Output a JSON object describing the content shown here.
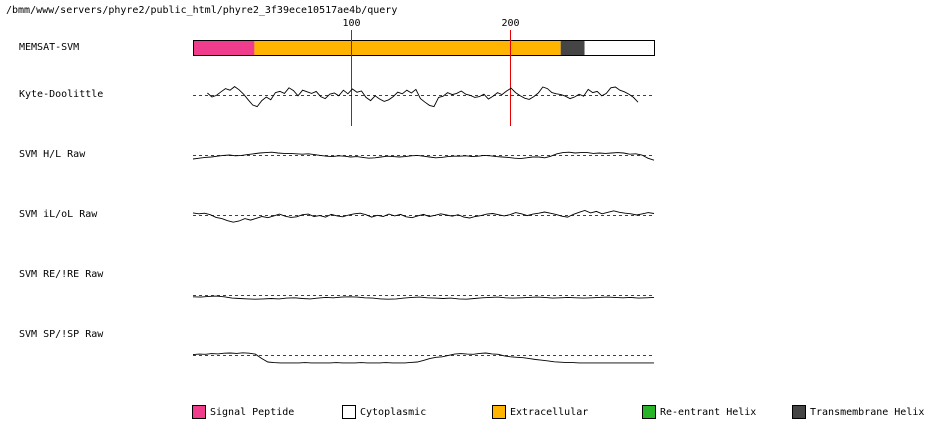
{
  "path_title": "/bmm/www/servers/phyre2/public_html/phyre2_3f39ece10517ae4b/query",
  "chart_data": {
    "type": "line",
    "residue_range": [
      1,
      290
    ],
    "tick_labels": [
      "100",
      "200"
    ],
    "tick_positions": [
      100,
      200
    ],
    "memsat": {
      "label": "MEMSAT-SVM",
      "segments": [
        {
          "type": "signal",
          "start": 1,
          "end": 39
        },
        {
          "type": "extra",
          "start": 40,
          "end": 231
        },
        {
          "type": "tm",
          "start": 232,
          "end": 246
        },
        {
          "type": "cyto",
          "start": 247,
          "end": 290
        }
      ]
    },
    "tracks": [
      {
        "name": "Kyte-Doolittle",
        "residues": [
          10,
          280
        ],
        "baseline": 0,
        "values": [
          0.5,
          -0.5,
          -0.1,
          0.8,
          1.6,
          1.2,
          2.1,
          1.3,
          0.2,
          -1.2,
          -2.5,
          -2.9,
          -1.4,
          -0.5,
          -1.2,
          0.6,
          0.9,
          0.4,
          1.8,
          1.1,
          -0.2,
          1.2,
          0.8,
          0.4,
          0.9,
          -0.4,
          -0.9,
          0.2,
          0.5,
          -0.2,
          1.2,
          0.3,
          1.5,
          0.7,
          1.0,
          -0.6,
          -1.4,
          -0.2,
          -1.0,
          -1.6,
          -1.2,
          -0.4,
          0.7,
          0.3,
          1.2,
          0.5,
          1.4,
          -0.9,
          -1.8,
          -2.6,
          -2.9,
          -0.6,
          -0.3,
          0.6,
          0.1,
          0.4,
          1.0,
          0.2,
          -0.1,
          -0.6,
          -0.4,
          0.2,
          -1.0,
          -0.3,
          0.6,
          0.1,
          1.0,
          1.7,
          0.6,
          -0.2,
          -0.8,
          -1.1,
          -0.4,
          0.5,
          2.0,
          1.6,
          0.6,
          0.3,
          0.1,
          -0.3,
          -0.9,
          -0.5,
          0.2,
          -0.3,
          1.4,
          0.6,
          0.9,
          -0.2,
          0.4,
          1.8,
          2.0,
          1.2,
          0.8,
          0.2,
          -0.6,
          -1.8
        ]
      },
      {
        "name": "SVM H/L Raw",
        "residues": [
          1,
          290
        ],
        "baseline": 0,
        "values": [
          -1.0,
          -0.8,
          -0.6,
          -0.5,
          -0.3,
          -0.1,
          0.0,
          -0.2,
          -0.1,
          0.1,
          0.3,
          0.5,
          0.6,
          0.7,
          0.5,
          0.4,
          0.4,
          0.3,
          0.2,
          0.3,
          0.1,
          -0.1,
          -0.3,
          -0.4,
          -0.2,
          -0.3,
          -0.5,
          -0.4,
          -0.6,
          -0.8,
          -0.7,
          -0.5,
          -0.3,
          -0.4,
          -0.5,
          -0.4,
          -0.2,
          -0.1,
          -0.3,
          -0.5,
          -0.7,
          -0.6,
          -0.4,
          -0.3,
          -0.3,
          -0.2,
          -0.4,
          -0.3,
          -0.1,
          -0.2,
          -0.4,
          -0.5,
          -0.6,
          -0.8,
          -0.9,
          -0.7,
          -0.5,
          -0.5,
          -0.7,
          -0.3,
          0.3,
          0.6,
          0.7,
          0.5,
          0.6,
          0.6,
          0.4,
          0.5,
          0.4,
          0.5,
          0.6,
          0.5,
          0.2,
          0.3,
          0.0,
          -0.8,
          -1.3
        ]
      },
      {
        "name": "SVM iL/oL Raw",
        "residues": [
          1,
          290
        ],
        "baseline": 0,
        "values": [
          0.7,
          0.4,
          0.6,
          0.1,
          -0.8,
          -1.2,
          -1.9,
          -2.4,
          -2.0,
          -1.2,
          -1.7,
          -1.1,
          -0.5,
          -0.9,
          -0.3,
          0.3,
          -0.4,
          -0.8,
          -0.6,
          0.1,
          0.3,
          -0.5,
          -0.2,
          -0.7,
          0.2,
          -0.3,
          -0.6,
          0.0,
          0.4,
          0.6,
          0.1,
          -0.7,
          -0.1,
          -0.5,
          0.3,
          -0.3,
          0.2,
          -0.6,
          -0.9,
          -0.3,
          0.2,
          -0.5,
          -0.1,
          0.4,
          0.0,
          -0.4,
          0.1,
          -0.7,
          -1.0,
          -0.5,
          -0.2,
          0.3,
          0.5,
          0.1,
          -0.3,
          0.1,
          0.8,
          0.4,
          -0.2,
          0.3,
          0.6,
          1.0,
          0.6,
          0.2,
          -0.4,
          -0.7,
          0.2,
          0.9,
          1.5,
          0.7,
          1.2,
          0.4,
          0.9,
          1.4,
          0.9,
          0.6,
          0.4,
          0.0,
          0.4,
          0.8,
          0.5
        ]
      },
      {
        "name": "SVM RE/!RE Raw",
        "residues": [
          1,
          290
        ],
        "baseline": 0,
        "values": [
          -0.5,
          -0.6,
          -0.4,
          -0.3,
          -0.5,
          -0.9,
          -1.0,
          -1.1,
          -1.2,
          -1.1,
          -1.0,
          -1.1,
          -0.9,
          -0.8,
          -1.0,
          -1.1,
          -0.9,
          -0.7,
          -0.8,
          -0.6,
          -0.5,
          -0.6,
          -0.8,
          -0.9,
          -1.1,
          -1.2,
          -1.1,
          -0.9,
          -0.7,
          -0.6,
          -0.8,
          -0.9,
          -1.0,
          -0.9,
          -1.1,
          -1.2,
          -1.0,
          -0.8,
          -0.7,
          -0.6,
          -0.8,
          -0.9,
          -0.8,
          -0.7,
          -0.6,
          -0.7,
          -0.9,
          -0.8,
          -0.7,
          -0.8,
          -0.9,
          -0.8,
          -0.7,
          -0.6,
          -0.7,
          -0.8,
          -0.7,
          -0.9,
          -0.8,
          -0.7
        ]
      },
      {
        "name": "SVM SP/!SP Raw",
        "residues": [
          1,
          290
        ],
        "baseline": 0,
        "values": [
          0.2,
          0.4,
          0.3,
          0.6,
          0.5,
          0.8,
          0.9,
          0.7,
          1.0,
          0.8,
          0.4,
          -1.5,
          -3.1,
          -3.4,
          -3.5,
          -3.5,
          -3.5,
          -3.5,
          -3.4,
          -3.5,
          -3.5,
          -3.5,
          -3.5,
          -3.4,
          -3.5,
          -3.5,
          -3.5,
          -3.4,
          -3.5,
          -3.5,
          -3.5,
          -3.4,
          -3.5,
          -3.5,
          -3.5,
          -3.3,
          -3.1,
          -2.4,
          -1.6,
          -1.0,
          -0.8,
          -0.2,
          0.4,
          0.6,
          0.4,
          0.3,
          0.7,
          0.9,
          0.5,
          0.3,
          -0.4,
          -0.8,
          -1.0,
          -1.2,
          -1.6,
          -2.0,
          -2.3,
          -2.6,
          -3.0,
          -3.2,
          -3.4,
          -3.4,
          -3.5,
          -3.5,
          -3.5,
          -3.5,
          -3.5,
          -3.5,
          -3.5,
          -3.5,
          -3.5,
          -3.5,
          -3.5,
          -3.5,
          -3.5
        ]
      }
    ],
    "legend": [
      {
        "label": "Signal Peptide",
        "color": "#f03c8c"
      },
      {
        "label": "Cytoplasmic",
        "color": "#ffffff"
      },
      {
        "label": "Extracellular",
        "color": "#ffb400"
      },
      {
        "label": "Re-entrant Helix",
        "color": "#28b428"
      },
      {
        "label": "Transmembrane Helix",
        "color": "#454545"
      }
    ],
    "colors": {
      "signal": "#f03c8c",
      "extra": "#ffb400",
      "tm": "#454545",
      "cyto": "#ffffff",
      "reentrant": "#28b428",
      "marker": "#e60000"
    }
  }
}
